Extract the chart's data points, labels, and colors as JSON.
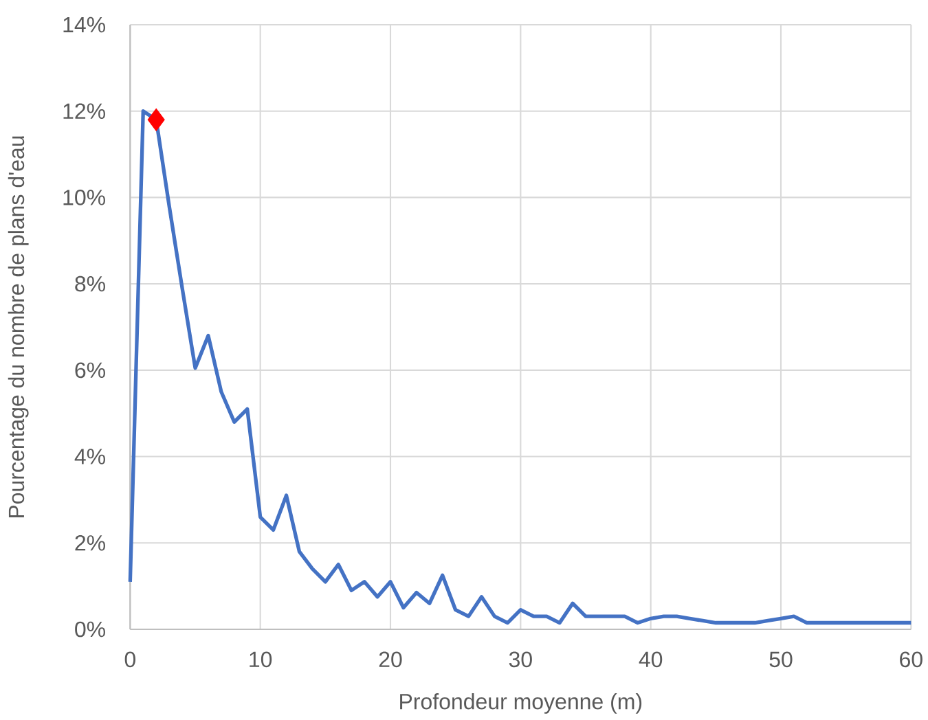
{
  "chart_data": {
    "type": "line",
    "xlabel": "Profondeur moyenne (m)",
    "ylabel": "Pourcentage du nombre de plans d'eau",
    "xlim": [
      0,
      60
    ],
    "xticks": [
      0,
      10,
      20,
      30,
      40,
      50,
      60
    ],
    "ylim": [
      0,
      14
    ],
    "yticks": [
      {
        "value": 0,
        "label": "0%"
      },
      {
        "value": 2,
        "label": "2%"
      },
      {
        "value": 4,
        "label": "4%"
      },
      {
        "value": 6,
        "label": "6%"
      },
      {
        "value": 8,
        "label": "8%"
      },
      {
        "value": 10,
        "label": "10%"
      },
      {
        "value": 12,
        "label": "12%"
      },
      {
        "value": 14,
        "label": "14%"
      }
    ],
    "grid": true,
    "series": [
      {
        "color": "#4472c4",
        "marker": "none",
        "x": [
          0,
          1,
          2,
          3,
          4,
          5,
          6,
          7,
          8,
          9,
          10,
          11,
          12,
          13,
          14,
          15,
          16,
          17,
          18,
          19,
          20,
          21,
          22,
          23,
          24,
          25,
          26,
          27,
          28,
          29,
          30,
          31,
          32,
          33,
          34,
          35,
          36,
          37,
          38,
          39,
          40,
          41,
          42,
          43,
          44,
          45,
          46,
          47,
          48,
          49,
          50,
          51,
          52,
          53,
          54,
          55,
          56,
          57,
          58,
          59,
          60
        ],
        "values": [
          1.1,
          12.0,
          11.8,
          9.8,
          7.9,
          6.05,
          6.8,
          5.5,
          4.8,
          5.1,
          2.6,
          2.3,
          3.1,
          1.8,
          1.4,
          1.1,
          1.5,
          0.9,
          1.1,
          0.75,
          1.1,
          0.5,
          0.85,
          0.6,
          1.25,
          0.45,
          0.3,
          0.75,
          0.3,
          0.15,
          0.45,
          0.3,
          0.3,
          0.15,
          0.6,
          0.3,
          0.3,
          0.3,
          0.3,
          0.15,
          0.25,
          0.3,
          0.3,
          0.25,
          0.2,
          0.15,
          0.15,
          0.15,
          0.15,
          0.2,
          0.25,
          0.3,
          0.15,
          0.15,
          0.15,
          0.15,
          0.15,
          0.15,
          0.15,
          0.15,
          0.15
        ]
      },
      {
        "type": "scatter",
        "color": "#ff0000",
        "marker": "diamond",
        "x": [
          2
        ],
        "values": [
          11.8
        ]
      }
    ]
  }
}
